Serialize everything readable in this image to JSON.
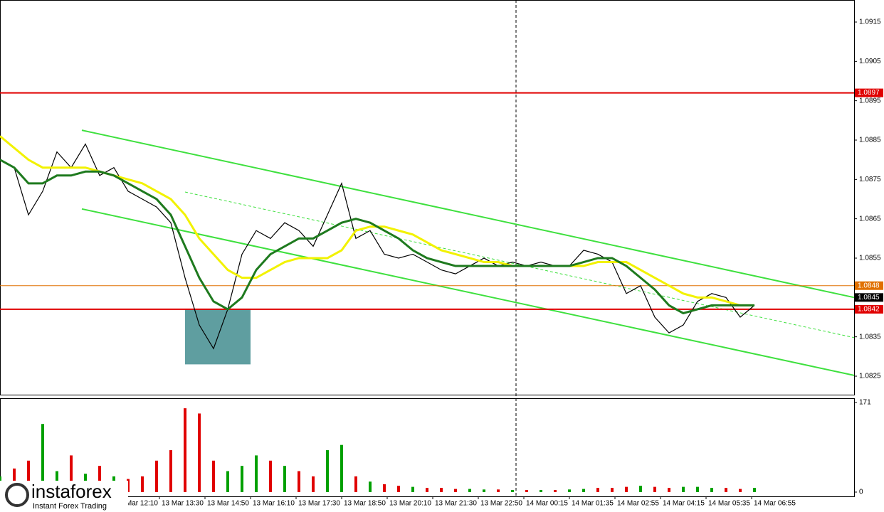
{
  "chart_data": [
    {
      "type": "line",
      "x": [
        0,
        5,
        10,
        15,
        20,
        25,
        30,
        35,
        40,
        45,
        50,
        55,
        60,
        65,
        70,
        75,
        80,
        85,
        90,
        95,
        100,
        105,
        110,
        115,
        120,
        125,
        130,
        135,
        140,
        145,
        150,
        155,
        160,
        165,
        170,
        175,
        180,
        185,
        190,
        195,
        200,
        205,
        210,
        215,
        220,
        225,
        230,
        235,
        240,
        245,
        250,
        255,
        260,
        265
      ],
      "xlim": [
        0,
        300
      ],
      "xticks": [
        {
          "value": 40,
          "label": "13 Mar 12:10"
        },
        {
          "value": 56,
          "label": "13 Mar 13:30"
        },
        {
          "value": 72,
          "label": "13 Mar 14:50"
        },
        {
          "value": 88,
          "label": "13 Mar 16:10"
        },
        {
          "value": 104,
          "label": "13 Mar 17:30"
        },
        {
          "value": 120,
          "label": "13 Mar 18:50"
        },
        {
          "value": 136,
          "label": "13 Mar 20:10"
        },
        {
          "value": 152,
          "label": "13 Mar 21:30"
        },
        {
          "value": 168,
          "label": "13 Mar 22:50"
        },
        {
          "value": 184,
          "label": "14 Mar 00:15"
        },
        {
          "value": 200,
          "label": "14 Mar 01:35"
        },
        {
          "value": 216,
          "label": "14 Mar 02:55"
        },
        {
          "value": 232,
          "label": "14 Mar 04:15"
        },
        {
          "value": 248,
          "label": "14 Mar 05:35"
        },
        {
          "value": 264,
          "label": "14 Mar 06:55"
        }
      ],
      "series": [
        {
          "color": "#000000",
          "values": [
            1.088,
            1.0878,
            1.0866,
            1.0872,
            1.0882,
            1.0878,
            1.0884,
            1.0876,
            1.0878,
            1.0872,
            1.087,
            1.0868,
            1.0864,
            1.085,
            1.0838,
            1.0832,
            1.0842,
            1.0856,
            1.0862,
            1.086,
            1.0864,
            1.0862,
            1.0858,
            1.0866,
            1.0874,
            1.086,
            1.0862,
            1.0856,
            1.0855,
            1.0856,
            1.0854,
            1.0852,
            1.0851,
            1.0853,
            1.0855,
            1.0853,
            1.0854,
            1.0853,
            1.0854,
            1.0853,
            1.0853,
            1.0857,
            1.0856,
            1.0854,
            1.0846,
            1.0848,
            1.084,
            1.0836,
            1.0838,
            1.0844,
            1.0846,
            1.0845,
            1.084,
            1.0843
          ]
        },
        {
          "color": "#f2f200",
          "values": [
            1.0886,
            1.0883,
            1.088,
            1.0878,
            1.0878,
            1.0878,
            1.0878,
            1.0877,
            1.0876,
            1.0875,
            1.0874,
            1.0872,
            1.087,
            1.0866,
            1.086,
            1.0856,
            1.0852,
            1.085,
            1.085,
            1.0852,
            1.0854,
            1.0855,
            1.0855,
            1.0855,
            1.0857,
            1.0862,
            1.0863,
            1.0863,
            1.0862,
            1.0861,
            1.0859,
            1.0857,
            1.0856,
            1.0855,
            1.0854,
            1.0854,
            1.0853,
            1.0853,
            1.0853,
            1.0853,
            1.0853,
            1.0853,
            1.0854,
            1.0854,
            1.0854,
            1.0852,
            1.085,
            1.0848,
            1.0846,
            1.0845,
            1.0845,
            1.0844,
            1.0843,
            1.0843
          ]
        },
        {
          "color": "#1e7a1e",
          "values": [
            1.088,
            1.0878,
            1.0874,
            1.0874,
            1.0876,
            1.0876,
            1.0877,
            1.0877,
            1.0876,
            1.0874,
            1.0872,
            1.087,
            1.0866,
            1.0858,
            1.085,
            1.0844,
            1.0842,
            1.0845,
            1.0852,
            1.0856,
            1.0858,
            1.086,
            1.086,
            1.0862,
            1.0864,
            1.0865,
            1.0864,
            1.0862,
            1.086,
            1.0857,
            1.0855,
            1.0854,
            1.0853,
            1.0853,
            1.0853,
            1.0853,
            1.0853,
            1.0853,
            1.0853,
            1.0853,
            1.0853,
            1.0854,
            1.0855,
            1.0855,
            1.0853,
            1.085,
            1.0847,
            1.0843,
            1.0841,
            1.0842,
            1.0843,
            1.0843,
            1.0843,
            1.0843
          ]
        }
      ],
      "ylim": [
        1.08203,
        1.09206
      ],
      "yticks": [
        1.0915,
        1.0905,
        1.0895,
        1.0885,
        1.0875,
        1.0865,
        1.0855,
        1.0835,
        1.0825
      ],
      "levels": [
        {
          "value": 1.0897,
          "color": "#e00000"
        },
        {
          "value": 1.0848,
          "color": "#e07000"
        },
        {
          "value": 1.0845,
          "color": "#000000"
        },
        {
          "value": 1.0842,
          "color": "#e00000"
        }
      ],
      "channels": [
        {
          "color": "#3ee03e",
          "x": [
            28.75,
            300
          ],
          "values": [
            1.08875,
            1.0845
          ]
        },
        {
          "color": "#3ee03e",
          "x": [
            28.75,
            300
          ],
          "values": [
            1.08675,
            1.08252
          ]
        },
        {
          "color": "#3ee03e",
          "dashed": true,
          "x": [
            65,
            300
          ],
          "values": [
            1.08718,
            1.08348
          ]
        }
      ],
      "zone": {
        "color": "#5f9ea0",
        "x": [
          65,
          88
        ],
        "y": [
          1.0828,
          1.0842
        ]
      },
      "vline": 181.25
    },
    {
      "type": "bar",
      "x": [
        0,
        5,
        10,
        15,
        20,
        25,
        30,
        35,
        40,
        45,
        50,
        55,
        60,
        65,
        70,
        75,
        80,
        85,
        90,
        95,
        100,
        105,
        110,
        115,
        120,
        125,
        130,
        135,
        140,
        145,
        150,
        155,
        160,
        165,
        170,
        175,
        180,
        185,
        190,
        195,
        200,
        205,
        210,
        215,
        220,
        225,
        230,
        235,
        240,
        245,
        250,
        255,
        260,
        265
      ],
      "values": [
        30,
        45,
        60,
        130,
        40,
        70,
        35,
        50,
        30,
        25,
        30,
        60,
        80,
        160,
        150,
        60,
        40,
        50,
        70,
        60,
        50,
        40,
        30,
        80,
        90,
        30,
        20,
        15,
        12,
        10,
        8,
        8,
        6,
        6,
        5,
        5,
        4,
        4,
        4,
        4,
        5,
        6,
        8,
        8,
        10,
        12,
        10,
        8,
        10,
        10,
        8,
        8,
        6,
        8
      ],
      "up_color": "#00a000",
      "down_color": "#e00000",
      "ylim": [
        0,
        171
      ],
      "yticks": [
        0,
        171
      ]
    }
  ],
  "logo": {
    "name": "instaforex",
    "tagline": "Instant Forex Trading"
  }
}
